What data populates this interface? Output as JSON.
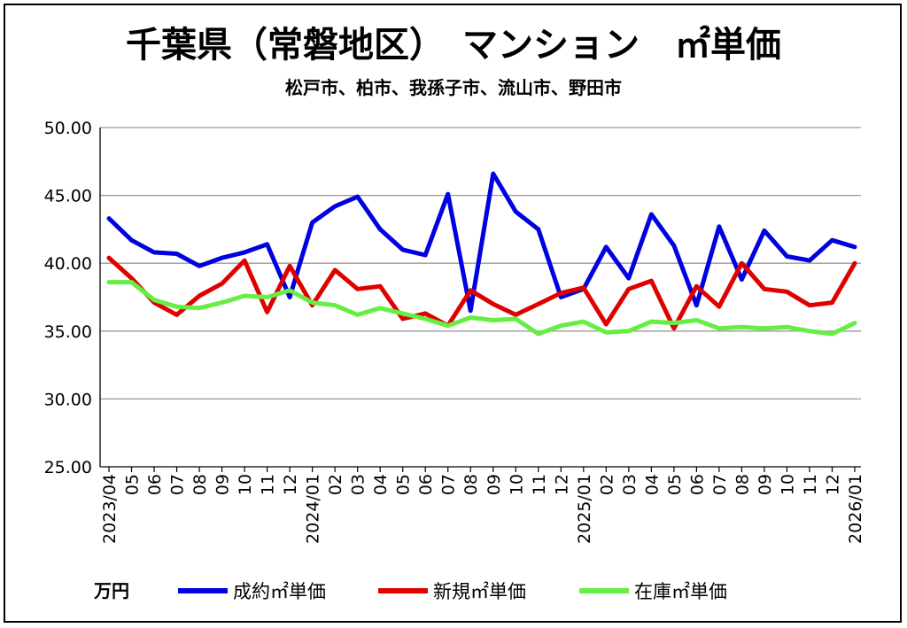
{
  "chart_data": {
    "type": "line",
    "title": "千葉県（常磐地区）　マンション　㎡単価",
    "subtitle": "松戸市、柏市、我孫子市、流山市、野田市",
    "unit_label": "万円",
    "ylim": [
      25,
      50
    ],
    "yticks": [
      "50.00",
      "45.00",
      "40.00",
      "35.00",
      "30.00",
      "25.00"
    ],
    "ytick_values": [
      50,
      45,
      40,
      35,
      30,
      25
    ],
    "grid": true,
    "legend_position": "bottom",
    "categories": [
      "2023/04",
      "05",
      "06",
      "07",
      "08",
      "09",
      "10",
      "11",
      "12",
      "2024/01",
      "02",
      "03",
      "04",
      "05",
      "06",
      "07",
      "08",
      "09",
      "10",
      "11",
      "12",
      "2025/01",
      "02",
      "03",
      "04",
      "05",
      "06",
      "07",
      "08",
      "09",
      "10",
      "11",
      "12",
      "2026/01"
    ],
    "series": [
      {
        "name": "成約㎡単価",
        "color": "#0000e0",
        "values": [
          43.3,
          41.7,
          40.8,
          40.7,
          39.8,
          40.4,
          40.8,
          41.4,
          37.5,
          43.0,
          44.2,
          44.9,
          42.5,
          41.0,
          40.6,
          45.1,
          36.5,
          46.6,
          43.8,
          42.5,
          37.5,
          38.1,
          41.2,
          38.9,
          43.6,
          41.3,
          36.9,
          42.7,
          38.8,
          42.4,
          40.5,
          40.2,
          41.7,
          41.2
        ]
      },
      {
        "name": "新規㎡単価",
        "color": "#e00000",
        "values": [
          40.4,
          38.9,
          37.1,
          36.2,
          37.6,
          38.5,
          40.2,
          36.4,
          39.8,
          36.9,
          39.5,
          38.1,
          38.3,
          35.9,
          36.3,
          35.4,
          38.0,
          37.0,
          36.2,
          37.0,
          37.8,
          38.2,
          35.5,
          38.1,
          38.7,
          35.2,
          38.3,
          36.8,
          40.0,
          38.1,
          37.9,
          36.9,
          37.1,
          40.0
        ]
      },
      {
        "name": "在庫㎡単価",
        "color": "#66ee44",
        "values": [
          38.6,
          38.6,
          37.3,
          36.8,
          36.7,
          37.1,
          37.6,
          37.5,
          38.0,
          37.1,
          36.9,
          36.2,
          36.7,
          36.3,
          35.9,
          35.4,
          36.0,
          35.8,
          35.9,
          34.8,
          35.4,
          35.7,
          34.9,
          35.0,
          35.7,
          35.6,
          35.8,
          35.2,
          35.3,
          35.2,
          35.3,
          35.0,
          34.8,
          35.6
        ]
      }
    ]
  }
}
